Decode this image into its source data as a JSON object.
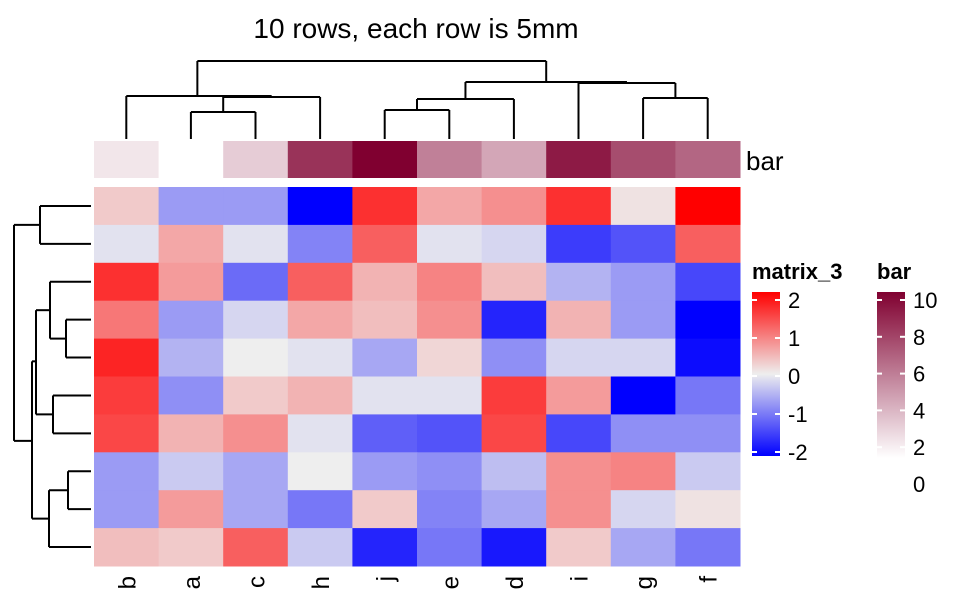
{
  "chart_data": {
    "type": "heatmap",
    "title": "10 rows, each row is 5mm",
    "columns": [
      "b",
      "a",
      "c",
      "h",
      "j",
      "e",
      "d",
      "i",
      "g",
      "f"
    ],
    "matrix_values": [
      [
        0.3,
        -0.7,
        -0.7,
        -2.2,
        1.6,
        0.6,
        0.8,
        1.6,
        0.1,
        2.0
      ],
      [
        -0.1,
        0.6,
        -0.1,
        -0.9,
        1.2,
        -0.1,
        -0.2,
        -1.5,
        -1.3,
        1.2
      ],
      [
        1.6,
        0.7,
        -1.1,
        1.2,
        0.5,
        0.9,
        0.4,
        -0.5,
        -0.7,
        -1.4
      ],
      [
        1.0,
        -0.7,
        -0.2,
        0.6,
        0.4,
        0.8,
        -1.7,
        0.5,
        -0.7,
        -2.2
      ],
      [
        1.7,
        -0.5,
        0.0,
        -0.1,
        -0.6,
        0.2,
        -0.8,
        -0.2,
        -0.2,
        -1.9
      ],
      [
        1.5,
        -0.8,
        0.3,
        0.5,
        -0.1,
        -0.1,
        1.5,
        0.7,
        -2.2,
        -1.0
      ],
      [
        1.4,
        0.5,
        0.8,
        -0.1,
        -1.2,
        -1.3,
        1.4,
        -1.4,
        -0.8,
        -0.8
      ],
      [
        -0.7,
        -0.3,
        -0.6,
        0.0,
        -0.7,
        -0.8,
        -0.4,
        0.8,
        0.9,
        -0.3
      ],
      [
        -0.7,
        0.7,
        -0.6,
        -1.0,
        0.3,
        -0.9,
        -0.6,
        0.8,
        -0.2,
        0.1
      ],
      [
        0.4,
        0.3,
        1.2,
        -0.3,
        -1.7,
        -1.0,
        -1.8,
        0.3,
        -0.6,
        -1.0
      ]
    ],
    "bar_annotation": [
      1,
      0,
      2,
      8,
      10,
      5,
      3.5,
      9,
      7,
      6
    ],
    "bar_label": "bar",
    "matrix_legend": {
      "title": "matrix_3",
      "range": [
        -2,
        2
      ],
      "ticks": [
        "2",
        "1",
        "0",
        "-1",
        "-2"
      ],
      "low_color": "#0000FF",
      "mid_color": "#EEEEEE",
      "high_color": "#FF0000"
    },
    "bar_legend": {
      "title": "bar",
      "range": [
        0,
        10
      ],
      "ticks": [
        "10",
        "8",
        "6",
        "4",
        "2",
        "0"
      ],
      "low_color": "#FFFFFF",
      "high_color": "#800030"
    },
    "row_dendrogram": true,
    "column_dendrogram": true
  }
}
